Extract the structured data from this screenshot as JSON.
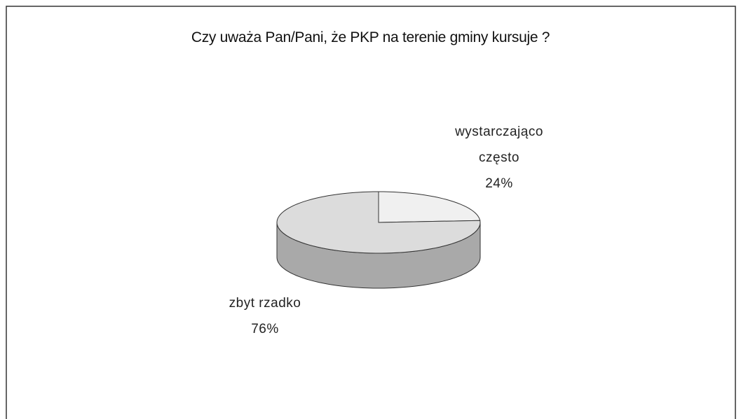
{
  "chart_data": {
    "type": "pie3d",
    "title": "Czy uważa Pan/Pani, że PKP na terenie gminy kursuje ?",
    "categories": [
      "wystarczająco często",
      "zbyt rzadko"
    ],
    "values": [
      24,
      76
    ],
    "value_labels": [
      "24%",
      "76%"
    ],
    "colors": [
      "#f0f0f0",
      "#dcdcdc"
    ]
  }
}
